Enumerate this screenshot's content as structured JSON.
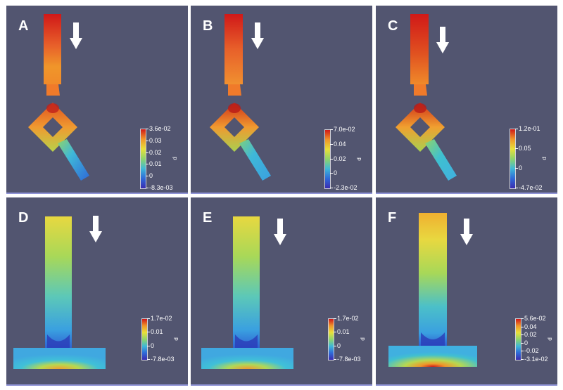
{
  "colors": {
    "background": "#525570",
    "colormap": [
      "#3b2db0",
      "#2f69d8",
      "#3fb8d8",
      "#8fd46a",
      "#e8e03a",
      "#f0962a",
      "#d01818"
    ]
  },
  "panels": [
    {
      "label": "A",
      "variable": "p",
      "colorbar": {
        "max_label": "3.6e-02",
        "min_label": "-8.3e-03",
        "ticks": [
          "0.03",
          "0.02",
          "0.01",
          "0"
        ]
      }
    },
    {
      "label": "B",
      "variable": "p",
      "colorbar": {
        "max_label": "7.0e-02",
        "min_label": "-2.3e-02",
        "ticks": [
          "0.04",
          "0.02",
          "0"
        ]
      }
    },
    {
      "label": "C",
      "variable": "p",
      "colorbar": {
        "max_label": "1.2e-01",
        "min_label": "-4.7e-02",
        "ticks": [
          "0.05",
          "0"
        ]
      }
    },
    {
      "label": "D",
      "variable": "p",
      "colorbar": {
        "max_label": "1.7e-02",
        "min_label": "-7.8e-03",
        "ticks": [
          "0.01",
          "0"
        ]
      }
    },
    {
      "label": "E",
      "variable": "p",
      "colorbar": {
        "max_label": "1.7e-02",
        "min_label": "-7.8e-03",
        "ticks": [
          "0.01",
          "0"
        ]
      }
    },
    {
      "label": "F",
      "variable": "p",
      "colorbar": {
        "max_label": "5.6e-02",
        "min_label": "-3.1e-02",
        "ticks": [
          "0.04",
          "0.02",
          "0",
          "-0.02"
        ]
      }
    }
  ]
}
